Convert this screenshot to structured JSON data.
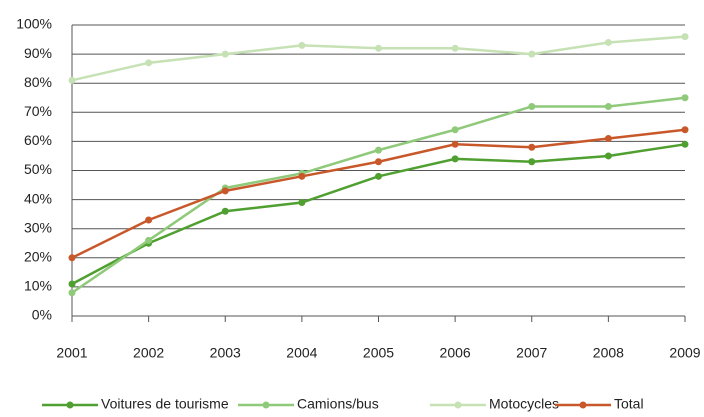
{
  "chart_data": {
    "type": "line",
    "categories": [
      "2001",
      "2002",
      "2003",
      "2004",
      "2005",
      "2006",
      "2007",
      "2008",
      "2009"
    ],
    "series": [
      {
        "name": "Voitures de tourisme",
        "color": "#4fa030",
        "values": [
          11,
          25,
          36,
          39,
          48,
          54,
          53,
          55,
          59
        ]
      },
      {
        "name": "Camions/bus",
        "color": "#8fc97a",
        "values": [
          8,
          26,
          44,
          49,
          57,
          64,
          72,
          72,
          75
        ]
      },
      {
        "name": "Motocycles",
        "color": "#c6e2b5",
        "values": [
          81,
          87,
          90,
          93,
          92,
          92,
          90,
          94,
          96
        ]
      },
      {
        "name": "Total",
        "color": "#c8582a",
        "values": [
          20,
          33,
          43,
          48,
          53,
          59,
          58,
          61,
          64
        ]
      }
    ],
    "ylim": [
      0,
      100
    ],
    "yticks": [
      {
        "value": 0,
        "label": "0%"
      },
      {
        "value": 10,
        "label": "10%"
      },
      {
        "value": 20,
        "label": "20%"
      },
      {
        "value": 30,
        "label": "30%"
      },
      {
        "value": 40,
        "label": "40%"
      },
      {
        "value": 50,
        "label": "50%"
      },
      {
        "value": 60,
        "label": "60%"
      },
      {
        "value": 70,
        "label": "70%"
      },
      {
        "value": 80,
        "label": "80%"
      },
      {
        "value": 90,
        "label": "90%"
      },
      {
        "value": 100,
        "label": "100%"
      }
    ],
    "grid": true,
    "legend": "bottom"
  }
}
